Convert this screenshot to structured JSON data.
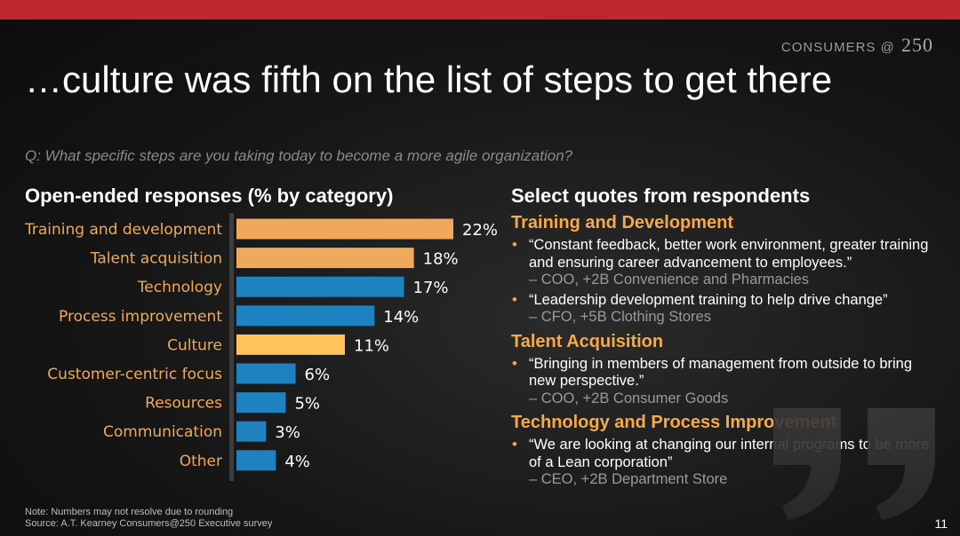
{
  "brand": {
    "text": "CONSUMERS",
    "at": "@",
    "num": "250"
  },
  "title": "…culture was fifth on the list of steps to get there",
  "question": "Q: What specific steps are you taking today to become a more agile organization?",
  "left_title": "Open-ended responses (% by category)",
  "right_title": "Select quotes from respondents",
  "chart_data": {
    "type": "bar",
    "orientation": "horizontal",
    "title": "Open-ended responses (% by category)",
    "categories": [
      "Training and development",
      "Talent acquisition",
      "Technology",
      "Process improvement",
      "Culture",
      "Customer-centric focus",
      "Resources",
      "Communication",
      "Other"
    ],
    "values": [
      22,
      18,
      17,
      14,
      11,
      6,
      5,
      3,
      4
    ],
    "labels": [
      "22%",
      "18%",
      "17%",
      "14%",
      "11%",
      "6%",
      "5%",
      "3%",
      "4%"
    ],
    "colors": [
      "#f0a95a",
      "#f0a95a",
      "#1f82c0",
      "#1f82c0",
      "#ffc35a",
      "#1f82c0",
      "#1f82c0",
      "#1f82c0",
      "#1f82c0"
    ],
    "xlim": [
      0,
      22
    ],
    "grid": false,
    "legend": "none"
  },
  "quotes": [
    {
      "category": "Training and Development",
      "items": [
        {
          "text": "“Constant feedback, better work environment, greater training and ensuring career advancement to employees.”",
          "attr": "– COO, +2B Convenience and Pharmacies"
        },
        {
          "text": "“Leadership development training to help drive change”",
          "attr": "– CFO, +5B Clothing Stores"
        }
      ]
    },
    {
      "category": "Talent Acquisition",
      "items": [
        {
          "text": "“Bringing in members of management from outside to bring new perspective.”",
          "attr": "– COO, +2B Consumer Goods"
        }
      ]
    },
    {
      "category": "Technology and Process Improvement",
      "items": [
        {
          "text": "“We are looking at changing our internal programs to be more of a Lean corporation”",
          "attr": "– CEO, +2B Department Store"
        }
      ]
    }
  ],
  "bullet": "•",
  "footnote": {
    "note": "Note: Numbers may not resolve due to rounding",
    "source": "Source: A.T. Kearney Consumers@250 Executive survey"
  },
  "page_number": "11",
  "colors": {
    "accent_red": "#c0272d",
    "orange": "#f5a94b",
    "blue": "#1f82c0"
  }
}
